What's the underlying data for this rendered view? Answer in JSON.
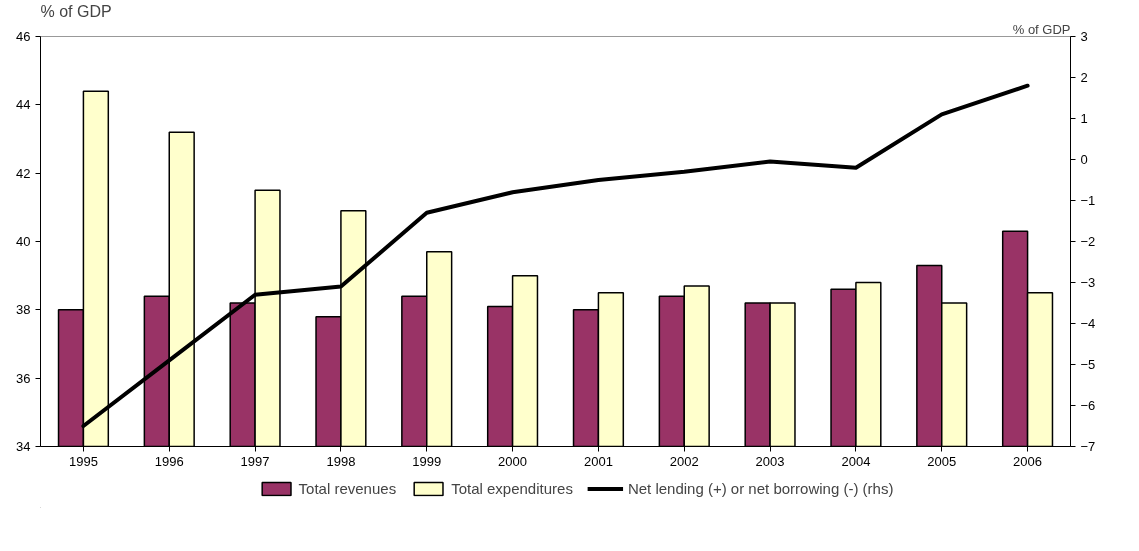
{
  "chart_data": {
    "type": "bar",
    "ylabel": "% of GDP",
    "y2label": "% of GDP",
    "categories": [
      "1995",
      "1996",
      "1997",
      "1998",
      "1999",
      "2000",
      "2001",
      "2002",
      "2003",
      "2004",
      "2005",
      "2006"
    ],
    "series": [
      {
        "name": "Total revenues",
        "color": "#993366",
        "values": [
          38.0,
          38.4,
          38.2,
          37.8,
          38.4,
          38.1,
          38.0,
          38.4,
          38.2,
          38.6,
          39.3,
          40.3
        ]
      },
      {
        "name": "Total expenditures",
        "color": "#ffffcc",
        "values": [
          44.4,
          43.2,
          41.5,
          40.9,
          39.7,
          39.0,
          38.5,
          38.7,
          38.2,
          38.8,
          38.2,
          38.5
        ]
      },
      {
        "name": "Net lending (+) or net borrowing (-) (rhs)",
        "type": "line",
        "axis": "y2",
        "color": "#000000",
        "values": [
          -6.5,
          -4.9,
          -3.3,
          -3.1,
          -1.3,
          -0.8,
          -0.5,
          -0.3,
          -0.05,
          -0.2,
          1.1,
          1.8
        ]
      }
    ],
    "ylim": [
      34,
      46
    ],
    "yticks": [
      34,
      36,
      38,
      40,
      42,
      44,
      46
    ],
    "y2lim": [
      -7,
      3
    ],
    "y2ticks": [
      -7,
      -6,
      -5,
      -4,
      -3,
      -2,
      -1,
      0,
      1,
      2,
      3
    ],
    "grid": false,
    "legend": "bottom"
  }
}
